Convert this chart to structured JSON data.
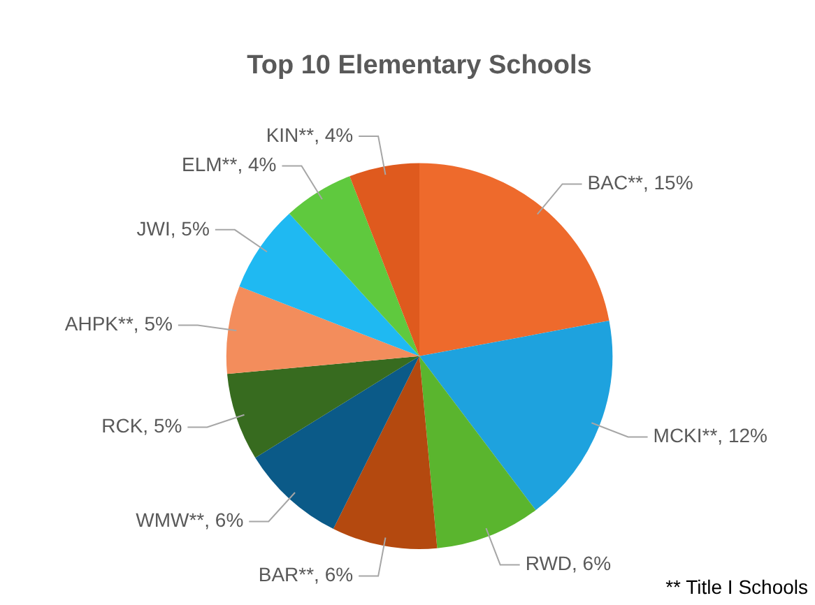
{
  "chart_data": {
    "type": "pie",
    "title": "Top 10 Elementary Schools",
    "categories": [
      "BAC**",
      "MCKI**",
      "RWD",
      "BAR**",
      "WMW**",
      "RCK",
      "AHPK**",
      "JWI",
      "ELM**",
      "KIN**"
    ],
    "values": [
      15,
      12,
      6,
      6,
      6,
      5,
      5,
      5,
      4,
      4
    ],
    "value_labels": [
      "15%",
      "12%",
      "6%",
      "6%",
      "6%",
      "5%",
      "5%",
      "5%",
      "4%",
      "4%"
    ],
    "colors": [
      "#ee6a2c",
      "#1ea2de",
      "#5ab52e",
      "#b4490f",
      "#0b5a88",
      "#376b1f",
      "#f38d5c",
      "#1fb9f2",
      "#5fc93e",
      "#df5a1e"
    ],
    "legend": false,
    "annotations": [
      "** Title I Schools"
    ]
  }
}
